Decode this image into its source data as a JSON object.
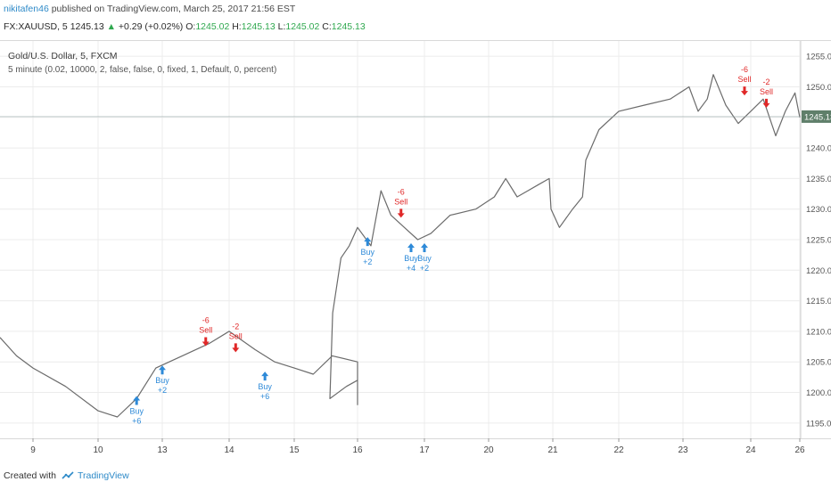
{
  "header": {
    "author": "nikitafen46",
    "published_text": "published on TradingView.com, March 25, 2017 21:56 EST",
    "symbol": "FX:XAUUSD, 5",
    "last": "1245.13",
    "change_arrow": "▲",
    "change": "+0.29 (+0.02%)",
    "o_label": "O:",
    "o_value": "1245.02",
    "h_label": "H:",
    "h_value": "1245.13",
    "l_label": "L:",
    "l_value": "1245.02",
    "c_label": "C:",
    "c_value": "1245.13"
  },
  "legend": {
    "title": "Gold/U.S. Dollar, 5, FXCM",
    "strategy": "5 minute (0.02, 10000, 2, false, false, 0, fixed, 1, Default, 0, percent)"
  },
  "footer": {
    "created_with": "Created with",
    "brand": "TradingView"
  },
  "colors": {
    "price_line": "#6b6b6b",
    "buy": "#2e8ad8",
    "sell": "#e02828",
    "grid": "#ececec",
    "last_price_label_bg": "#5f7f6a"
  },
  "chart_data": {
    "type": "line",
    "title": "Gold/U.S. Dollar, 5, FXCM",
    "ylim": [
      1192.5,
      1257.5
    ],
    "y_ticks": [
      "1195.00",
      "1200.00",
      "1205.00",
      "1210.00",
      "1215.00",
      "1220.00",
      "1225.00",
      "1230.00",
      "1235.00",
      "1240.00",
      "1245.00",
      "1250.00",
      "1255.00"
    ],
    "x_ticks": [
      "9",
      "10",
      "13",
      "14",
      "15",
      "16",
      "17",
      "20",
      "21",
      "22",
      "23",
      "24",
      "26"
    ],
    "last_price": "1245.13",
    "grid": true,
    "series": [
      {
        "x": [
          8.0,
          8.5,
          9.0,
          9.5,
          10.0,
          10.3,
          10.6,
          10.9,
          11.3,
          11.7,
          12.0,
          12.4,
          12.7,
          13.0,
          13.3,
          13.6,
          14.0,
          14.3,
          14.6,
          14.9,
          15.2,
          15.5,
          15.55,
          15.7,
          15.85,
          16.0,
          16.2,
          16.35,
          16.5,
          16.7,
          16.9,
          17.1,
          17.4,
          17.8,
          18.2,
          18.6,
          19.0,
          19.3,
          19.6,
          19.9,
          19.95,
          20.1,
          20.3,
          20.45,
          20.5,
          20.7,
          21.0,
          21.4,
          21.8,
          22.2,
          22.5,
          22.8,
          23.0,
          23.2,
          23.4,
          23.6,
          23.8,
          24.0,
          24.2,
          24.4,
          24.5
        ],
        "y": [
          1209,
          1206,
          1204,
          1201,
          1197,
          1196,
          1199,
          1204,
          1206,
          1208,
          1210,
          1207,
          1205,
          1204,
          1203,
          1206,
          1205,
          1200,
          1198,
          1202,
          1201,
          1199,
          1213,
          1222,
          1224,
          1227,
          1224,
          1233,
          1229,
          1227,
          1225,
          1226,
          1229,
          1230,
          1232,
          1235,
          1232,
          1233,
          1234,
          1235,
          1230,
          1227,
          1230,
          1232,
          1238,
          1243,
          1246,
          1247,
          1248,
          1250,
          1246,
          1248,
          1252,
          1247,
          1244,
          1246,
          1248,
          1242,
          1246,
          1249,
          1245
        ]
      }
    ],
    "signals": [
      {
        "type": "buy",
        "label": "Buy",
        "qty": "+6",
        "x": 10.6,
        "y": 1200
      },
      {
        "type": "buy",
        "label": "Buy",
        "qty": "+2",
        "x": 11.0,
        "y": 1205
      },
      {
        "type": "sell",
        "label": "Sell",
        "qty": "-6",
        "x": 11.65,
        "y": 1207
      },
      {
        "type": "sell",
        "label": "Sell",
        "qty": "-2",
        "x": 12.1,
        "y": 1206
      },
      {
        "type": "buy",
        "label": "Buy",
        "qty": "+6",
        "x": 12.55,
        "y": 1204
      },
      {
        "type": "buy",
        "label": "Buy",
        "qty": "+2",
        "x": 16.15,
        "y": 1226
      },
      {
        "type": "sell",
        "label": "Sell",
        "qty": "-6",
        "x": 16.65,
        "y": 1228
      },
      {
        "type": "buy",
        "label": "Buy",
        "qty": "+4",
        "x": 16.8,
        "y": 1225
      },
      {
        "type": "buy",
        "label": "Buy",
        "qty": "+2",
        "x": 17.0,
        "y": 1225
      },
      {
        "type": "sell",
        "label": "Sell",
        "qty": "-6",
        "x": 23.5,
        "y": 1248
      },
      {
        "type": "sell",
        "label": "Sell",
        "qty": "-2",
        "x": 23.85,
        "y": 1246
      }
    ]
  }
}
